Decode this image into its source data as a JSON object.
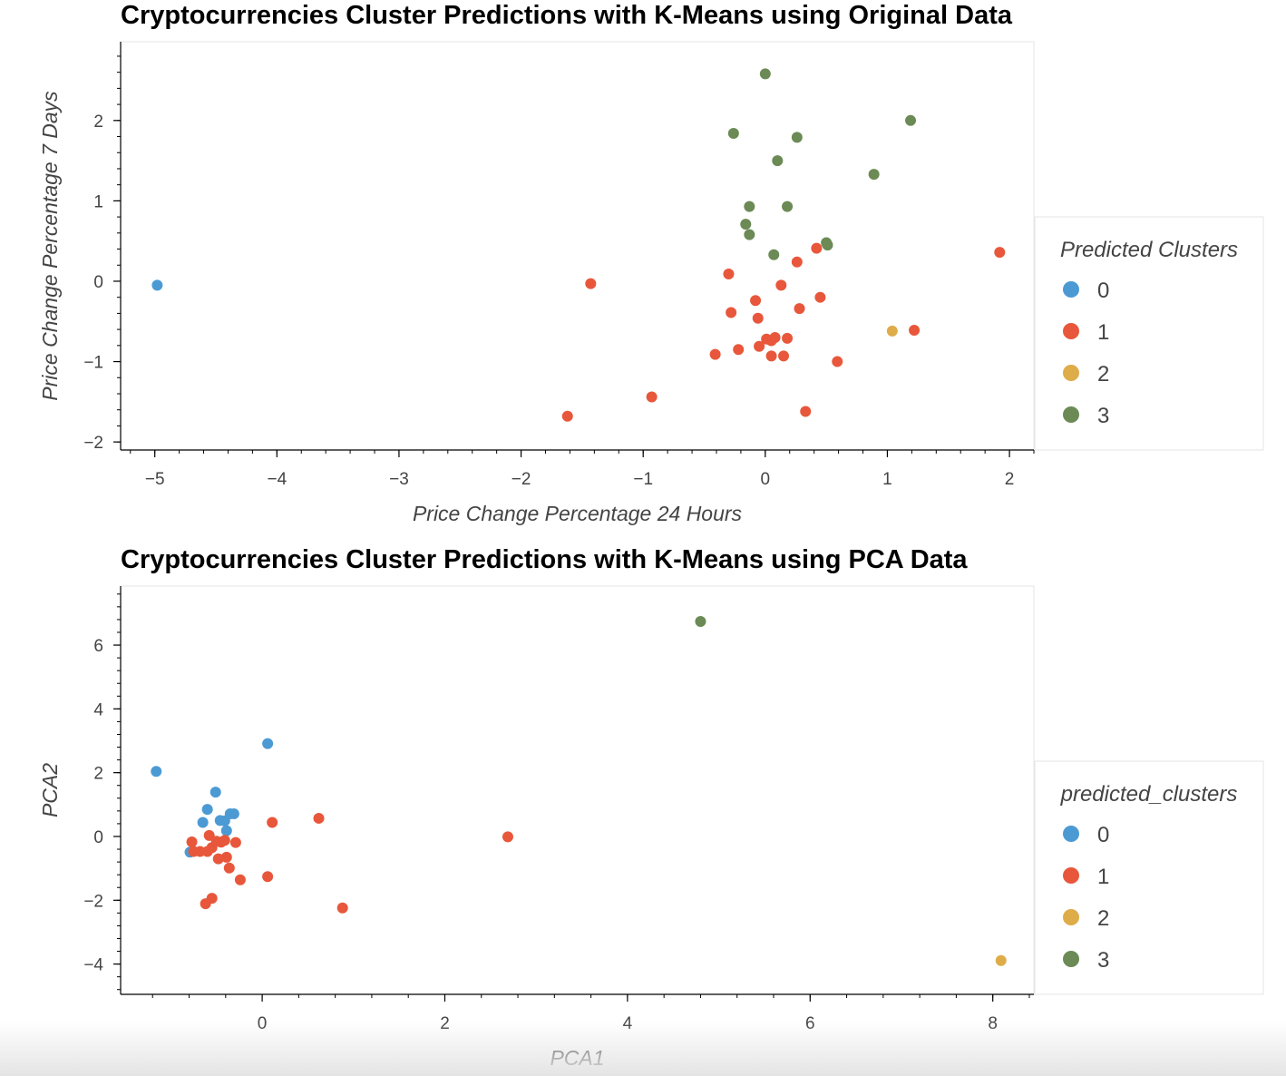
{
  "colors": {
    "0": "#4c9ad4",
    "1": "#e8573b",
    "2": "#deac48",
    "3": "#6b8a55"
  },
  "chart_data": [
    {
      "type": "scatter",
      "title": "Cryptocurrencies Cluster Predictions with K-Means using Original Data",
      "xlabel": "Price Change Percentage 24 Hours",
      "ylabel": "Price Change Percentage 7 Days",
      "xlim": [
        -5.28,
        2.2
      ],
      "ylim": [
        -2.1,
        2.98
      ],
      "xticks": [
        -5,
        -4,
        -3,
        -2,
        -1,
        0,
        1,
        2
      ],
      "xtick_labels": [
        "−5",
        "−4",
        "−3",
        "−2",
        "−1",
        "0",
        "1",
        "2"
      ],
      "yticks": [
        -2,
        -1,
        0,
        1,
        2
      ],
      "ytick_labels": [
        "−2",
        "−1",
        "0",
        "1",
        "2"
      ],
      "grid": false,
      "legend": {
        "title": "Predicted Clusters",
        "entries": [
          "0",
          "1",
          "2",
          "3"
        ],
        "placement": "right"
      },
      "series": [
        {
          "name": "0",
          "points": [
            [
              -4.98,
              -0.05
            ]
          ]
        },
        {
          "name": "1",
          "points": [
            [
              -1.43,
              -0.03
            ],
            [
              -1.62,
              -1.68
            ],
            [
              -0.93,
              -1.44
            ],
            [
              -0.41,
              -0.91
            ],
            [
              -0.22,
              -0.85
            ],
            [
              -0.3,
              0.09
            ],
            [
              -0.28,
              -0.39
            ],
            [
              -0.08,
              -0.24
            ],
            [
              -0.06,
              -0.46
            ],
            [
              -0.05,
              -0.81
            ],
            [
              0.01,
              -0.72
            ],
            [
              0.05,
              -0.74
            ],
            [
              0.08,
              -0.7
            ],
            [
              0.18,
              -0.71
            ],
            [
              0.05,
              -0.93
            ],
            [
              0.15,
              -0.93
            ],
            [
              0.13,
              -0.05
            ],
            [
              0.26,
              0.24
            ],
            [
              0.28,
              -0.34
            ],
            [
              0.42,
              0.41
            ],
            [
              0.45,
              -0.2
            ],
            [
              0.33,
              -1.62
            ],
            [
              0.59,
              -1.0
            ],
            [
              1.22,
              -0.61
            ],
            [
              1.92,
              0.36
            ]
          ]
        },
        {
          "name": "2",
          "points": [
            [
              1.04,
              -0.62
            ]
          ]
        },
        {
          "name": "3",
          "points": [
            [
              0.0,
              2.58
            ],
            [
              -0.26,
              1.84
            ],
            [
              0.26,
              1.79
            ],
            [
              0.1,
              1.5
            ],
            [
              1.19,
              2.0
            ],
            [
              0.89,
              1.33
            ],
            [
              -0.13,
              0.93
            ],
            [
              0.18,
              0.93
            ],
            [
              -0.16,
              0.71
            ],
            [
              -0.13,
              0.58
            ],
            [
              0.07,
              0.33
            ],
            [
              0.5,
              0.48
            ],
            [
              0.51,
              0.45
            ]
          ]
        }
      ]
    },
    {
      "type": "scatter",
      "title": "Cryptocurrencies Cluster Predictions with K-Means using PCA Data",
      "xlabel": "PCA1",
      "ylabel": "PCA2",
      "xlim": [
        -1.55,
        8.45
      ],
      "ylim": [
        -4.95,
        7.85
      ],
      "xticks": [
        0,
        2,
        4,
        6,
        8
      ],
      "xtick_labels": [
        "0",
        "2",
        "4",
        "6",
        "8"
      ],
      "yticks": [
        -4,
        -2,
        0,
        2,
        4,
        6
      ],
      "ytick_labels": [
        "−4",
        "−2",
        "0",
        "2",
        "4",
        "6"
      ],
      "grid": false,
      "legend": {
        "title": "predicted_clusters",
        "entries": [
          "0",
          "1",
          "2",
          "3"
        ],
        "placement": "right"
      },
      "series": [
        {
          "name": "0",
          "points": [
            [
              -1.16,
              2.04
            ],
            [
              0.06,
              2.91
            ],
            [
              -0.51,
              1.39
            ],
            [
              -0.6,
              0.85
            ],
            [
              -0.65,
              0.44
            ],
            [
              -0.46,
              0.5
            ],
            [
              -0.41,
              0.49
            ],
            [
              -0.35,
              0.71
            ],
            [
              -0.31,
              0.71
            ],
            [
              -0.39,
              0.18
            ],
            [
              -0.79,
              -0.49
            ]
          ]
        },
        {
          "name": "1",
          "points": [
            [
              -0.77,
              -0.17
            ],
            [
              -0.75,
              -0.47
            ],
            [
              -0.68,
              -0.47
            ],
            [
              -0.6,
              -0.47
            ],
            [
              -0.58,
              0.03
            ],
            [
              -0.55,
              -0.35
            ],
            [
              -0.5,
              -0.15
            ],
            [
              -0.45,
              -0.18
            ],
            [
              -0.41,
              -0.12
            ],
            [
              -0.48,
              -0.7
            ],
            [
              -0.39,
              -0.65
            ],
            [
              -0.36,
              -0.99
            ],
            [
              -0.29,
              -0.19
            ],
            [
              -0.24,
              -1.36
            ],
            [
              -0.62,
              -2.11
            ],
            [
              -0.55,
              -1.94
            ],
            [
              0.06,
              -1.26
            ],
            [
              0.11,
              0.44
            ],
            [
              0.62,
              0.57
            ],
            [
              0.88,
              -2.24
            ],
            [
              2.69,
              -0.01
            ]
          ]
        },
        {
          "name": "2",
          "points": [
            [
              8.09,
              -3.89
            ]
          ]
        },
        {
          "name": "3",
          "points": [
            [
              4.8,
              6.74
            ]
          ]
        }
      ]
    }
  ]
}
